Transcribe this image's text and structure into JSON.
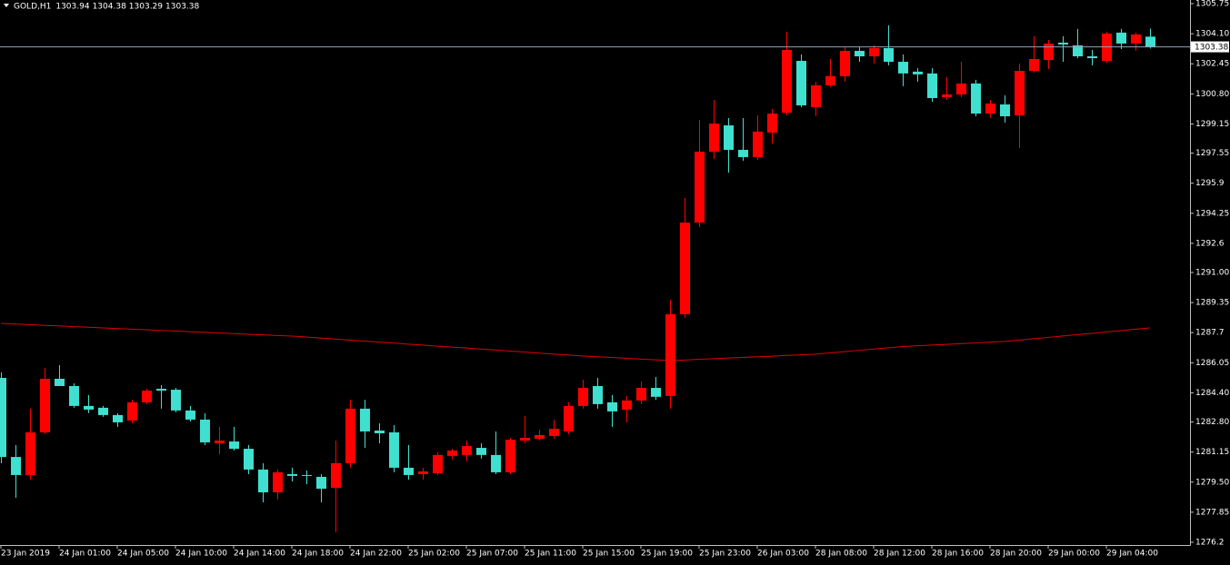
{
  "chart_data": {
    "type": "candlestick",
    "title": "GOLD,H1",
    "categories": [
      "23 Jan 2019",
      null,
      null,
      null,
      "24 Jan 01:00",
      null,
      null,
      null,
      "24 Jan 05:00",
      null,
      null,
      null,
      "24 Jan 10:00",
      null,
      null,
      null,
      "24 Jan 14:00",
      null,
      null,
      null,
      "24 Jan 18:00",
      null,
      null,
      null,
      "24 Jan 22:00",
      null,
      null,
      null,
      "25 Jan 02:00",
      null,
      null,
      null,
      "25 Jan 07:00",
      null,
      null,
      null,
      "25 Jan 11:00",
      null,
      null,
      null,
      "25 Jan 15:00",
      null,
      null,
      null,
      "25 Jan 19:00",
      null,
      null,
      null,
      "25 Jan 23:00",
      null,
      null,
      null,
      "26 Jan 03:00",
      null,
      null,
      null,
      "28 Jan 08:00",
      null,
      null,
      null,
      "28 Jan 12:00",
      null,
      null,
      null,
      "28 Jan 16:00",
      null,
      null,
      null,
      "28 Jan 20:00",
      null,
      null,
      null,
      "29 Jan 00:00",
      null,
      null,
      null,
      "29 Jan 04:00",
      null,
      null,
      null
    ],
    "open": [
      1285.22,
      1280.88,
      1279.89,
      1282.23,
      1285.17,
      1284.77,
      1283.68,
      1283.58,
      1283.18,
      1282.88,
      1283.88,
      1284.62,
      1284.57,
      1283.43,
      1282.93,
      1281.63,
      1281.73,
      1281.33,
      1280.19,
      1278.94,
      1279.94,
      1279.89,
      1279.79,
      1279.19,
      1280.54,
      1283.53,
      1282.33,
      1282.23,
      1280.29,
      1279.94,
      1279.99,
      1280.94,
      1280.99,
      1281.38,
      1280.99,
      1280.04,
      1281.78,
      1281.88,
      1282.03,
      1282.28,
      1283.68,
      1284.77,
      1283.88,
      1283.48,
      1283.98,
      1284.67,
      1284.23,
      1288.71,
      1293.74,
      1297.63,
      1299.07,
      1297.73,
      1297.33,
      1298.68,
      1299.77,
      1302.61,
      1300.07,
      1301.27,
      1301.77,
      1303.16,
      1302.86,
      1303.31,
      1302.56,
      1302.02,
      1301.92,
      1300.62,
      1300.77,
      1301.37,
      1299.72,
      1300.22,
      1299.62,
      1302.06,
      1302.66,
      1303.61,
      1303.46,
      1302.86,
      1302.61,
      1304.16,
      1303.56,
      1303.94
    ],
    "high": [
      1285.52,
      1281.53,
      1283.53,
      1285.77,
      1285.92,
      1284.92,
      1284.28,
      1283.68,
      1283.28,
      1284.02,
      1284.62,
      1284.82,
      1284.67,
      1283.68,
      1283.28,
      1282.53,
      1282.53,
      1281.53,
      1280.54,
      1280.19,
      1280.29,
      1280.14,
      1279.94,
      1281.78,
      1284.02,
      1284.02,
      1282.73,
      1282.63,
      1281.53,
      1280.29,
      1281.13,
      1281.33,
      1281.78,
      1281.63,
      1282.28,
      1281.93,
      1283.13,
      1282.38,
      1282.93,
      1283.88,
      1285.12,
      1285.22,
      1284.28,
      1284.23,
      1285.02,
      1285.27,
      1289.51,
      1295.09,
      1299.37,
      1300.47,
      1299.47,
      1299.47,
      1299.62,
      1299.97,
      1304.21,
      1302.96,
      1301.47,
      1302.71,
      1303.36,
      1303.36,
      1303.46,
      1304.56,
      1302.96,
      1302.21,
      1302.21,
      1301.72,
      1302.56,
      1301.57,
      1300.47,
      1300.72,
      1302.46,
      1303.96,
      1303.76,
      1303.96,
      1304.36,
      1303.21,
      1304.21,
      1304.36,
      1304.16,
      1304.38
    ],
    "low": [
      1280.54,
      1278.64,
      1279.64,
      1282.13,
      1284.77,
      1283.58,
      1283.28,
      1283.08,
      1282.53,
      1282.73,
      1283.78,
      1283.53,
      1283.33,
      1282.83,
      1281.53,
      1281.03,
      1281.23,
      1279.94,
      1278.39,
      1278.54,
      1279.54,
      1279.39,
      1278.39,
      1276.75,
      1280.29,
      1281.38,
      1281.63,
      1280.04,
      1279.64,
      1279.64,
      1279.89,
      1280.74,
      1280.64,
      1280.79,
      1279.94,
      1279.94,
      1281.63,
      1281.78,
      1281.88,
      1282.13,
      1283.53,
      1283.53,
      1282.53,
      1282.78,
      1283.78,
      1284.02,
      1283.53,
      1288.51,
      1293.49,
      1297.23,
      1296.48,
      1297.13,
      1297.18,
      1298.08,
      1299.62,
      1300.07,
      1299.57,
      1301.17,
      1301.47,
      1302.56,
      1302.46,
      1302.36,
      1301.22,
      1301.47,
      1300.37,
      1300.47,
      1300.62,
      1299.57,
      1299.47,
      1299.22,
      1297.83,
      1301.97,
      1302.16,
      1302.56,
      1302.76,
      1302.36,
      1302.51,
      1303.26,
      1303.16,
      1303.29
    ],
    "close": [
      1280.88,
      1279.89,
      1282.23,
      1285.17,
      1284.77,
      1283.68,
      1283.48,
      1283.18,
      1282.78,
      1283.88,
      1284.52,
      1284.52,
      1283.43,
      1282.93,
      1281.68,
      1281.78,
      1281.33,
      1280.19,
      1278.94,
      1280.04,
      1279.84,
      1279.84,
      1279.14,
      1280.54,
      1283.53,
      1282.28,
      1282.18,
      1280.29,
      1279.89,
      1280.09,
      1280.99,
      1281.23,
      1281.48,
      1280.99,
      1280.04,
      1281.83,
      1281.93,
      1282.08,
      1282.43,
      1283.68,
      1284.67,
      1283.78,
      1283.38,
      1283.98,
      1284.67,
      1284.18,
      1288.71,
      1293.74,
      1297.63,
      1299.17,
      1297.73,
      1297.33,
      1298.73,
      1299.72,
      1303.21,
      1300.17,
      1301.27,
      1301.77,
      1303.16,
      1302.86,
      1303.31,
      1302.56,
      1301.92,
      1301.87,
      1300.57,
      1300.77,
      1301.37,
      1299.72,
      1300.27,
      1299.57,
      1302.06,
      1302.71,
      1303.56,
      1303.51,
      1302.86,
      1302.76,
      1304.11,
      1303.56,
      1304.06,
      1303.38
    ],
    "up_color": "#ff0000",
    "down_color": "#40e0d0",
    "moving_average": {
      "color": "#e00000",
      "values": [
        1288.21,
        1288.17,
        1288.14,
        1288.1,
        1288.07,
        1288.03,
        1288.0,
        1287.96,
        1287.93,
        1287.89,
        1287.86,
        1287.82,
        1287.79,
        1287.75,
        1287.72,
        1287.68,
        1287.65,
        1287.61,
        1287.58,
        1287.54,
        1287.51,
        1287.46,
        1287.4,
        1287.35,
        1287.29,
        1287.24,
        1287.18,
        1287.13,
        1287.07,
        1287.02,
        1286.96,
        1286.91,
        1286.86,
        1286.8,
        1286.75,
        1286.69,
        1286.64,
        1286.58,
        1286.53,
        1286.47,
        1286.42,
        1286.38,
        1286.34,
        1286.3,
        1286.25,
        1286.21,
        1286.17,
        1286.2,
        1286.24,
        1286.27,
        1286.31,
        1286.34,
        1286.38,
        1286.41,
        1286.45,
        1286.48,
        1286.52,
        1286.59,
        1286.66,
        1286.73,
        1286.8,
        1286.87,
        1286.94,
        1286.98,
        1287.02,
        1287.06,
        1287.1,
        1287.14,
        1287.18,
        1287.22,
        1287.29,
        1287.37,
        1287.44,
        1287.52,
        1287.59,
        1287.66,
        1287.74,
        1287.81,
        1287.89,
        1287.96
      ]
    },
    "ylim": [
      1276.05,
      1305.95
    ],
    "yticks": [
      1305.75,
      {
        "value": 1304.1,
        "label": "1304.10"
      },
      1302.45,
      {
        "value": 1300.8,
        "label": "1300.80"
      },
      1299.15,
      1297.55,
      1295.9,
      1294.25,
      1292.6,
      {
        "value": 1291,
        "label": "1291.00"
      },
      1289.35,
      1287.7,
      1286.05,
      {
        "value": 1284.4,
        "label": "1284.40"
      },
      {
        "value": 1282.8,
        "label": "1282.80"
      },
      1281.15,
      {
        "value": 1279.5,
        "label": "1279.50"
      },
      1277.85,
      1276.2
    ],
    "price_line_color": "#8fa3b8"
  }
}
